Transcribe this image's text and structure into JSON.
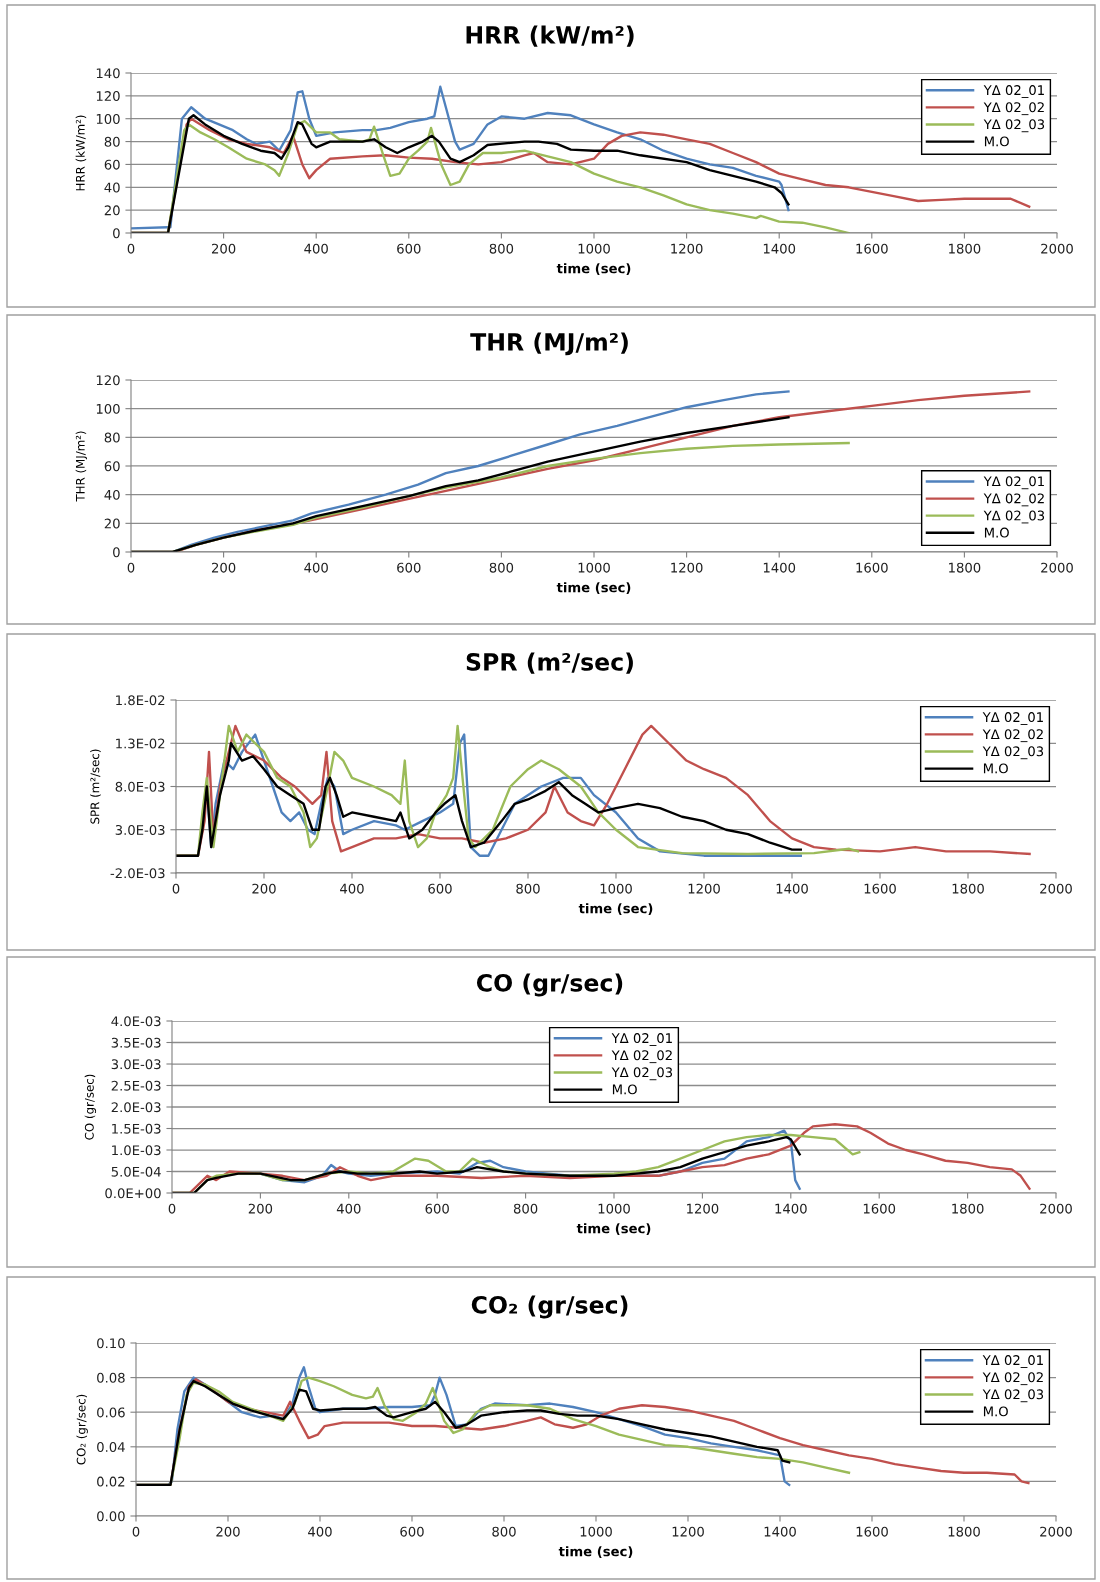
{
  "chart_data": [
    {
      "type": "line",
      "title": "HRR (kW/m²)",
      "xlabel": "time (sec)",
      "ylabel": "HRR (kW/m²)",
      "xlim": [
        0,
        2000
      ],
      "xticks": [
        0,
        200,
        400,
        600,
        800,
        1000,
        1200,
        1400,
        1600,
        1800,
        2000
      ],
      "ylim": [
        0,
        140
      ],
      "yticks": [
        0,
        20,
        40,
        60,
        80,
        100,
        120,
        140
      ],
      "grid": "y",
      "legend": "top right",
      "series": [
        {
          "name": "YΔ 02_01",
          "color": "#4f81bd",
          "x": [
            0,
            80,
            85,
            110,
            130,
            160,
            190,
            220,
            250,
            270,
            300,
            320,
            345,
            360,
            370,
            385,
            400,
            440,
            500,
            530,
            560,
            600,
            640,
            655,
            668,
            680,
            700,
            710,
            740,
            770,
            800,
            850,
            900,
            950,
            1000,
            1050,
            1100,
            1150,
            1200,
            1250,
            1300,
            1350,
            1400,
            1405,
            1420
          ],
          "values": [
            4,
            5,
            5,
            100,
            110,
            100,
            95,
            90,
            82,
            78,
            80,
            72,
            90,
            123,
            124,
            100,
            85,
            88,
            90,
            90,
            92,
            97,
            100,
            102,
            128,
            110,
            80,
            73,
            78,
            95,
            102,
            100,
            105,
            103,
            95,
            88,
            82,
            72,
            65,
            60,
            57,
            50,
            45,
            42,
            20
          ]
        },
        {
          "name": "YΔ 02_02",
          "color": "#c0504d",
          "x": [
            0,
            80,
            120,
            130,
            170,
            210,
            250,
            300,
            330,
            350,
            370,
            385,
            400,
            430,
            500,
            550,
            600,
            650,
            700,
            750,
            800,
            850,
            870,
            900,
            950,
            1000,
            1030,
            1060,
            1100,
            1150,
            1200,
            1250,
            1300,
            1350,
            1400,
            1450,
            1500,
            1550,
            1600,
            1650,
            1700,
            1750,
            1800,
            1850,
            1900,
            1940
          ],
          "values": [
            0,
            0,
            95,
            100,
            90,
            82,
            78,
            75,
            70,
            85,
            60,
            48,
            55,
            65,
            67,
            68,
            66,
            65,
            62,
            60,
            62,
            68,
            70,
            62,
            60,
            65,
            78,
            85,
            88,
            86,
            82,
            78,
            70,
            62,
            52,
            47,
            42,
            40,
            36,
            32,
            28,
            29,
            30,
            30,
            30,
            23
          ]
        },
        {
          "name": "YΔ 02_03",
          "color": "#9bbb59",
          "x": [
            0,
            80,
            115,
            125,
            150,
            180,
            210,
            250,
            290,
            310,
            320,
            340,
            360,
            375,
            400,
            430,
            450,
            500,
            515,
            525,
            545,
            560,
            580,
            600,
            620,
            640,
            648,
            670,
            690,
            710,
            730,
            760,
            800,
            850,
            900,
            950,
            1000,
            1050,
            1100,
            1150,
            1200,
            1250,
            1300,
            1350,
            1360,
            1400,
            1450,
            1500,
            1550
          ],
          "values": [
            0,
            0,
            90,
            95,
            88,
            82,
            75,
            65,
            60,
            55,
            50,
            70,
            95,
            98,
            88,
            88,
            82,
            80,
            82,
            93,
            68,
            50,
            52,
            65,
            72,
            80,
            92,
            60,
            42,
            45,
            60,
            70,
            70,
            72,
            67,
            62,
            52,
            45,
            40,
            33,
            25,
            20,
            17,
            13,
            15,
            10,
            9,
            5,
            0
          ]
        },
        {
          "name": "M.O",
          "color": "#000000",
          "x": [
            0,
            80,
            125,
            135,
            160,
            200,
            240,
            280,
            310,
            325,
            340,
            360,
            370,
            390,
            400,
            430,
            500,
            525,
            550,
            575,
            600,
            630,
            650,
            665,
            690,
            710,
            740,
            770,
            850,
            880,
            920,
            950,
            1000,
            1050,
            1100,
            1200,
            1250,
            1300,
            1350,
            1390,
            1405,
            1420
          ],
          "values": [
            0,
            0,
            100,
            103,
            95,
            85,
            78,
            72,
            70,
            65,
            75,
            97,
            95,
            78,
            75,
            80,
            80,
            82,
            75,
            70,
            75,
            80,
            85,
            80,
            65,
            62,
            68,
            77,
            80,
            80,
            78,
            73,
            72,
            72,
            68,
            62,
            55,
            50,
            45,
            40,
            35,
            25
          ]
        }
      ]
    },
    {
      "type": "line",
      "title": "THR (MJ/m²)",
      "xlabel": "time (sec)",
      "ylabel": "THR (MJ/m²)",
      "xlim": [
        0,
        2000
      ],
      "xticks": [
        0,
        200,
        400,
        600,
        800,
        1000,
        1200,
        1400,
        1600,
        1800,
        2000
      ],
      "ylim": [
        0,
        120
      ],
      "yticks": [
        0,
        20,
        40,
        60,
        80,
        100,
        120
      ],
      "grid": "y",
      "legend": "bottom right",
      "series": [
        {
          "name": "YΔ 02_01",
          "color": "#4f81bd",
          "x": [
            0,
            90,
            130,
            180,
            230,
            290,
            350,
            390,
            470,
            550,
            620,
            680,
            750,
            820,
            900,
            970,
            1050,
            1130,
            1200,
            1280,
            1350,
            1420
          ],
          "values": [
            0,
            0,
            5,
            10,
            14,
            18,
            22,
            27,
            33,
            40,
            47,
            55,
            60,
            67,
            75,
            82,
            88,
            95,
            101,
            106,
            110,
            112
          ]
        },
        {
          "name": "YΔ 02_02",
          "color": "#c0504d",
          "x": [
            0,
            95,
            140,
            200,
            270,
            340,
            400,
            500,
            600,
            700,
            800,
            900,
            1000,
            1100,
            1200,
            1300,
            1400,
            1500,
            1600,
            1700,
            1800,
            1940
          ],
          "values": [
            0,
            0,
            5,
            10,
            15,
            19,
            23,
            30,
            37,
            44,
            51,
            58,
            64,
            72,
            80,
            88,
            94,
            98,
            102,
            106,
            109,
            112
          ]
        },
        {
          "name": "YΔ 02_03",
          "color": "#9bbb59",
          "x": [
            0,
            90,
            140,
            200,
            280,
            350,
            400,
            500,
            600,
            680,
            800,
            900,
            1000,
            1100,
            1200,
            1300,
            1400,
            1550
          ],
          "values": [
            0,
            0,
            5,
            10,
            15,
            19,
            24,
            31,
            39,
            45,
            52,
            60,
            65,
            69,
            72,
            74,
            75,
            76
          ]
        },
        {
          "name": "M.O",
          "color": "#000000",
          "x": [
            0,
            90,
            140,
            200,
            270,
            350,
            400,
            500,
            600,
            680,
            750,
            820,
            900,
            1000,
            1100,
            1200,
            1300,
            1380,
            1420
          ],
          "values": [
            0,
            0,
            5,
            10,
            15,
            20,
            25,
            32,
            39,
            46,
            50,
            56,
            63,
            70,
            77,
            83,
            88,
            92,
            94
          ]
        }
      ]
    },
    {
      "type": "line",
      "title": "SPR (m²/sec)",
      "xlabel": "time (sec)",
      "ylabel": "SPR (m²/sec)",
      "xlim": [
        0,
        2000
      ],
      "xticks": [
        0,
        200,
        400,
        600,
        800,
        1000,
        1200,
        1400,
        1600,
        1800,
        2000
      ],
      "ylim": [
        -0.002,
        0.018
      ],
      "yticks": [
        {
          "value": -0.002,
          "label": "-2.0E-03"
        },
        {
          "value": 0.003,
          "label": "3.0E-03"
        },
        {
          "value": 0.008,
          "label": "8.0E-03"
        },
        {
          "value": 0.013,
          "label": "1.3E-02"
        },
        {
          "value": 0.018,
          "label": "1.8E-02"
        }
      ],
      "grid": "y",
      "legend": "top right",
      "series": [
        {
          "name": "YΔ 02_01",
          "color": "#4f81bd",
          "x": [
            70,
            80,
            90,
            110,
            130,
            150,
            180,
            200,
            220,
            240,
            260,
            280,
            300,
            315,
            330,
            345,
            360,
            380,
            400,
            450,
            500,
            520,
            560,
            600,
            630,
            645,
            655,
            670,
            690,
            710,
            740,
            770,
            830,
            880,
            920,
            950,
            1000,
            1050,
            1100,
            1200,
            1420
          ],
          "values": [
            0.008,
            0.001,
            0.006,
            0.011,
            0.01,
            0.012,
            0.014,
            0.011,
            0.008,
            0.005,
            0.004,
            0.005,
            0.003,
            0.0025,
            0.006,
            0.009,
            0.008,
            0.0025,
            0.003,
            0.004,
            0.0035,
            0.003,
            0.004,
            0.005,
            0.006,
            0.013,
            0.014,
            0.001,
            0,
            0,
            0.003,
            0.006,
            0.008,
            0.009,
            0.009,
            0.007,
            0.005,
            0.002,
            0.0005,
            0,
            0
          ]
        },
        {
          "name": "YΔ 02_02",
          "color": "#c0504d",
          "x": [
            0,
            50,
            65,
            75,
            85,
            100,
            120,
            135,
            160,
            200,
            240,
            270,
            310,
            330,
            342,
            355,
            375,
            400,
            450,
            500,
            550,
            600,
            650,
            700,
            750,
            800,
            840,
            860,
            890,
            920,
            950,
            980,
            1020,
            1060,
            1080,
            1120,
            1160,
            1200,
            1250,
            1300,
            1350,
            1400,
            1450,
            1500,
            1600,
            1680,
            1750,
            1850,
            1940
          ],
          "values": [
            0,
            0,
            0.004,
            0.012,
            0.002,
            0.008,
            0.012,
            0.015,
            0.012,
            0.011,
            0.009,
            0.008,
            0.006,
            0.007,
            0.012,
            0.004,
            0.0005,
            0.001,
            0.002,
            0.002,
            0.0025,
            0.002,
            0.002,
            0.0015,
            0.002,
            0.003,
            0.005,
            0.008,
            0.005,
            0.004,
            0.0035,
            0.006,
            0.01,
            0.014,
            0.015,
            0.013,
            0.011,
            0.01,
            0.009,
            0.007,
            0.004,
            0.002,
            0.001,
            0.0007,
            0.0005,
            0.001,
            0.0005,
            0.0005,
            0.0002
          ]
        },
        {
          "name": "YΔ 02_03",
          "color": "#9bbb59",
          "x": [
            0,
            50,
            60,
            70,
            85,
            100,
            115,
            120,
            140,
            160,
            200,
            230,
            260,
            290,
            305,
            320,
            345,
            360,
            380,
            400,
            450,
            490,
            510,
            520,
            530,
            550,
            570,
            590,
            615,
            630,
            640,
            655,
            665,
            680,
            720,
            760,
            800,
            830,
            870,
            920,
            960,
            1000,
            1050,
            1150,
            1300,
            1450,
            1530,
            1550
          ],
          "values": [
            0,
            0,
            0.005,
            0.009,
            0.001,
            0.007,
            0.013,
            0.015,
            0.012,
            0.014,
            0.012,
            0.009,
            0.008,
            0.005,
            0.001,
            0.002,
            0.008,
            0.012,
            0.011,
            0.009,
            0.008,
            0.007,
            0.006,
            0.011,
            0.004,
            0.001,
            0.002,
            0.005,
            0.007,
            0.009,
            0.015,
            0.007,
            0.002,
            0.001,
            0.003,
            0.008,
            0.01,
            0.011,
            0.01,
            0.008,
            0.005,
            0.003,
            0.001,
            0.0003,
            0.0002,
            0.0003,
            0.0008,
            0.0005
          ]
        },
        {
          "name": "M.O",
          "color": "#000000",
          "x": [
            0,
            50,
            60,
            70,
            80,
            100,
            120,
            125,
            150,
            175,
            200,
            230,
            260,
            290,
            310,
            325,
            340,
            350,
            365,
            380,
            400,
            450,
            500,
            510,
            530,
            560,
            590,
            610,
            635,
            650,
            670,
            700,
            740,
            770,
            800,
            840,
            870,
            900,
            930,
            960,
            1000,
            1050,
            1100,
            1150,
            1200,
            1250,
            1300,
            1350,
            1400,
            1420
          ],
          "values": [
            0,
            0,
            0.003,
            0.008,
            0.001,
            0.007,
            0.011,
            0.013,
            0.011,
            0.0115,
            0.01,
            0.008,
            0.007,
            0.006,
            0.003,
            0.003,
            0.008,
            0.009,
            0.007,
            0.0045,
            0.005,
            0.0045,
            0.004,
            0.005,
            0.002,
            0.003,
            0.005,
            0.006,
            0.007,
            0.004,
            0.001,
            0.0015,
            0.004,
            0.006,
            0.0065,
            0.0075,
            0.0085,
            0.007,
            0.006,
            0.005,
            0.0055,
            0.006,
            0.0055,
            0.0045,
            0.004,
            0.003,
            0.0025,
            0.0015,
            0.0007,
            0.0007
          ]
        }
      ]
    },
    {
      "type": "line",
      "title": "CO (gr/sec)",
      "xlabel": "time (sec)",
      "ylabel": "CO (gr/sec)",
      "xlim": [
        0,
        2000
      ],
      "xticks": [
        0,
        200,
        400,
        600,
        800,
        1000,
        1200,
        1400,
        1600,
        1800,
        2000
      ],
      "ylim": [
        0,
        0.004
      ],
      "yticks": [
        {
          "value": 0,
          "label": "0.0E+00"
        },
        {
          "value": 0.0005,
          "label": "5.0E-04"
        },
        {
          "value": 0.001,
          "label": "1.0E-03"
        },
        {
          "value": 0.0015,
          "label": "1.5E-03"
        },
        {
          "value": 0.002,
          "label": "2.0E-03"
        },
        {
          "value": 0.0025,
          "label": "2.5E-03"
        },
        {
          "value": 0.003,
          "label": "3.0E-03"
        },
        {
          "value": 0.0035,
          "label": "3.5E-03"
        },
        {
          "value": 0.004,
          "label": "4.0E-03"
        }
      ],
      "grid": "y",
      "legend": "top",
      "series": [
        {
          "name": "YΔ 02_01",
          "color": "#4f81bd",
          "x": [
            200,
            250,
            300,
            340,
            360,
            380,
            400,
            450,
            500,
            600,
            650,
            690,
            720,
            750,
            800,
            850,
            900,
            1000,
            1050,
            1100,
            1150,
            1200,
            1250,
            1300,
            1350,
            1385,
            1400,
            1410,
            1420
          ],
          "values": [
            0.00045,
            0.0003,
            0.00025,
            0.0004,
            0.00065,
            0.0005,
            0.00045,
            0.0004,
            0.00045,
            0.0005,
            0.00045,
            0.0007,
            0.00075,
            0.0006,
            0.0005,
            0.00045,
            0.0004,
            0.0004,
            0.0004,
            0.0004,
            0.0005,
            0.0007,
            0.0008,
            0.0012,
            0.0013,
            0.00145,
            0.0012,
            0.0003,
            0.0001
          ]
        },
        {
          "name": "YΔ 02_02",
          "color": "#c0504d",
          "x": [
            0,
            40,
            80,
            100,
            130,
            200,
            250,
            300,
            350,
            380,
            420,
            450,
            500,
            600,
            700,
            800,
            900,
            1000,
            1100,
            1150,
            1200,
            1250,
            1300,
            1350,
            1400,
            1430,
            1450,
            1500,
            1550,
            1580,
            1620,
            1660,
            1700,
            1750,
            1800,
            1850,
            1900,
            1920,
            1940
          ],
          "values": [
            0,
            0,
            0.0004,
            0.0003,
            0.0005,
            0.00045,
            0.0004,
            0.0003,
            0.0004,
            0.0006,
            0.0004,
            0.0003,
            0.0004,
            0.0004,
            0.00035,
            0.0004,
            0.00035,
            0.0004,
            0.0004,
            0.0005,
            0.0006,
            0.00065,
            0.0008,
            0.0009,
            0.0011,
            0.0014,
            0.00155,
            0.0016,
            0.00155,
            0.0014,
            0.00115,
            0.001,
            0.0009,
            0.00075,
            0.0007,
            0.0006,
            0.00055,
            0.0004,
            0.0001
          ]
        },
        {
          "name": "YΔ 02_03",
          "color": "#9bbb59",
          "x": [
            0,
            50,
            80,
            100,
            150,
            200,
            250,
            300,
            350,
            400,
            450,
            500,
            550,
            580,
            620,
            650,
            680,
            720,
            750,
            800,
            900,
            1000,
            1050,
            1100,
            1150,
            1200,
            1250,
            1300,
            1350,
            1400,
            1450,
            1500,
            1540,
            1555
          ],
          "values": [
            0,
            0,
            0.0003,
            0.0004,
            0.00045,
            0.00045,
            0.0003,
            0.0003,
            0.00045,
            0.0005,
            0.00045,
            0.0005,
            0.0008,
            0.00075,
            0.0005,
            0.0005,
            0.0008,
            0.0006,
            0.0005,
            0.00045,
            0.0004,
            0.00045,
            0.0005,
            0.0006,
            0.0008,
            0.001,
            0.0012,
            0.0013,
            0.00135,
            0.00135,
            0.0013,
            0.00125,
            0.0009,
            0.00095
          ]
        },
        {
          "name": "M.O",
          "color": "#000000",
          "x": [
            0,
            50,
            80,
            100,
            150,
            200,
            270,
            300,
            350,
            380,
            420,
            500,
            560,
            600,
            660,
            690,
            750,
            800,
            900,
            1000,
            1050,
            1100,
            1150,
            1200,
            1250,
            1300,
            1350,
            1390,
            1400,
            1420
          ],
          "values": [
            0,
            0,
            0.0003,
            0.00035,
            0.00045,
            0.00045,
            0.0003,
            0.0003,
            0.00045,
            0.0005,
            0.00045,
            0.00045,
            0.0005,
            0.00045,
            0.0005,
            0.0006,
            0.0005,
            0.00045,
            0.0004,
            0.0004,
            0.00045,
            0.0005,
            0.0006,
            0.0008,
            0.00095,
            0.0011,
            0.0012,
            0.0013,
            0.00125,
            0.0009
          ]
        }
      ]
    },
    {
      "type": "line",
      "title": "CO₂ (gr/sec)",
      "xlabel": "time (sec)",
      "ylabel": "CO₂ (gr/sec)",
      "xlim": [
        0,
        2000
      ],
      "xticks": [
        0,
        200,
        400,
        600,
        800,
        1000,
        1200,
        1400,
        1600,
        1800,
        2000
      ],
      "ylim": [
        0,
        0.1
      ],
      "yticks": [
        {
          "value": 0,
          "label": "0.00"
        },
        {
          "value": 0.02,
          "label": "0.02"
        },
        {
          "value": 0.04,
          "label": "0.04"
        },
        {
          "value": 0.06,
          "label": "0.06"
        },
        {
          "value": 0.08,
          "label": "0.08"
        },
        {
          "value": 0.1,
          "label": "0.10"
        }
      ],
      "grid": "y",
      "legend": "top right",
      "series": [
        {
          "name": "YΔ 02_01",
          "color": "#4f81bd",
          "x": [
            0,
            70,
            78,
            90,
            105,
            125,
            150,
            180,
            200,
            230,
            270,
            300,
            320,
            340,
            355,
            365,
            375,
            390,
            400,
            450,
            500,
            550,
            600,
            640,
            650,
            660,
            675,
            695,
            720,
            750,
            780,
            850,
            900,
            950,
            1000,
            1050,
            1100,
            1150,
            1200,
            1250,
            1300,
            1350,
            1400,
            1410,
            1420
          ],
          "values": [
            0.018,
            0.018,
            0.02,
            0.05,
            0.072,
            0.08,
            0.076,
            0.07,
            0.066,
            0.06,
            0.057,
            0.058,
            0.056,
            0.065,
            0.08,
            0.086,
            0.075,
            0.062,
            0.06,
            0.062,
            0.062,
            0.063,
            0.063,
            0.064,
            0.07,
            0.08,
            0.07,
            0.052,
            0.053,
            0.062,
            0.065,
            0.064,
            0.065,
            0.063,
            0.06,
            0.056,
            0.052,
            0.047,
            0.045,
            0.042,
            0.04,
            0.038,
            0.035,
            0.02,
            0.018
          ]
        },
        {
          "name": "YΔ 02_02",
          "color": "#c0504d",
          "x": [
            0,
            75,
            95,
            115,
            130,
            160,
            200,
            240,
            280,
            320,
            335,
            355,
            375,
            395,
            410,
            450,
            500,
            550,
            600,
            650,
            700,
            750,
            800,
            850,
            880,
            910,
            950,
            980,
            1010,
            1050,
            1100,
            1150,
            1200,
            1250,
            1300,
            1350,
            1400,
            1450,
            1500,
            1550,
            1600,
            1650,
            1700,
            1750,
            1800,
            1850,
            1910,
            1925,
            1940
          ],
          "values": [
            0.018,
            0.018,
            0.05,
            0.075,
            0.079,
            0.074,
            0.066,
            0.062,
            0.06,
            0.058,
            0.066,
            0.055,
            0.045,
            0.047,
            0.052,
            0.054,
            0.054,
            0.054,
            0.052,
            0.052,
            0.051,
            0.05,
            0.052,
            0.055,
            0.057,
            0.053,
            0.051,
            0.053,
            0.058,
            0.062,
            0.064,
            0.063,
            0.061,
            0.058,
            0.055,
            0.05,
            0.045,
            0.041,
            0.038,
            0.035,
            0.033,
            0.03,
            0.028,
            0.026,
            0.025,
            0.025,
            0.024,
            0.02,
            0.019
          ]
        },
        {
          "name": "YΔ 02_03",
          "color": "#9bbb59",
          "x": [
            0,
            75,
            95,
            110,
            125,
            150,
            180,
            210,
            250,
            290,
            320,
            345,
            360,
            375,
            400,
            430,
            470,
            500,
            515,
            525,
            540,
            560,
            580,
            610,
            630,
            645,
            670,
            690,
            710,
            740,
            770,
            850,
            900,
            950,
            1000,
            1050,
            1100,
            1150,
            1200,
            1250,
            1300,
            1350,
            1400,
            1450,
            1500,
            1550
          ],
          "values": [
            0.018,
            0.018,
            0.045,
            0.07,
            0.077,
            0.076,
            0.072,
            0.066,
            0.062,
            0.058,
            0.055,
            0.065,
            0.078,
            0.08,
            0.078,
            0.075,
            0.07,
            0.068,
            0.069,
            0.074,
            0.064,
            0.056,
            0.055,
            0.06,
            0.065,
            0.074,
            0.055,
            0.048,
            0.05,
            0.06,
            0.064,
            0.064,
            0.062,
            0.056,
            0.052,
            0.047,
            0.044,
            0.041,
            0.04,
            0.038,
            0.036,
            0.034,
            0.033,
            0.031,
            0.028,
            0.025
          ]
        },
        {
          "name": "M.O",
          "color": "#000000",
          "x": [
            0,
            75,
            95,
            115,
            125,
            150,
            180,
            210,
            250,
            290,
            320,
            340,
            355,
            370,
            385,
            400,
            450,
            500,
            520,
            545,
            560,
            600,
            630,
            650,
            670,
            695,
            720,
            750,
            800,
            850,
            880,
            920,
            960,
            1000,
            1050,
            1100,
            1150,
            1200,
            1250,
            1300,
            1350,
            1395,
            1405,
            1420
          ],
          "values": [
            0.018,
            0.018,
            0.05,
            0.074,
            0.078,
            0.075,
            0.07,
            0.065,
            0.061,
            0.058,
            0.056,
            0.062,
            0.073,
            0.072,
            0.062,
            0.061,
            0.062,
            0.062,
            0.063,
            0.058,
            0.057,
            0.06,
            0.062,
            0.066,
            0.06,
            0.051,
            0.053,
            0.058,
            0.06,
            0.061,
            0.061,
            0.059,
            0.058,
            0.058,
            0.056,
            0.053,
            0.05,
            0.048,
            0.046,
            0.043,
            0.04,
            0.038,
            0.032,
            0.031
          ]
        }
      ]
    }
  ]
}
